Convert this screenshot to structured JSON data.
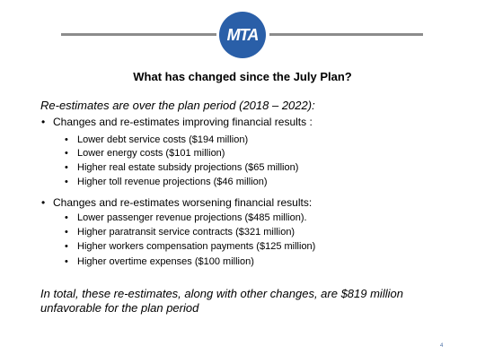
{
  "header": {
    "logo_text": "MTA"
  },
  "title": "What has changed since the July Plan?",
  "subhead": "Re-estimates are over the plan period (2018 – 2022):",
  "bullet_glyph": "•",
  "sections": [
    {
      "label": "Changes and re-estimates improving financial results :",
      "items": [
        "Lower debt service costs ($194 million)",
        "Lower energy costs ($101 million)",
        "Higher real estate subsidy projections ($65 million)",
        "Higher toll revenue projections ($46 million)"
      ]
    },
    {
      "label": "Changes and re-estimates worsening financial results:",
      "items": [
        "Lower passenger revenue projections ($485 million).",
        "Higher paratransit service contracts ($321 million)",
        "Higher workers compensation payments ($125 million)",
        "Higher overtime expenses ($100 million)"
      ]
    }
  ],
  "conclusion": "In total, these re-estimates, along with other changes, are $819 million unfavorable for the plan period",
  "page_number": "4"
}
